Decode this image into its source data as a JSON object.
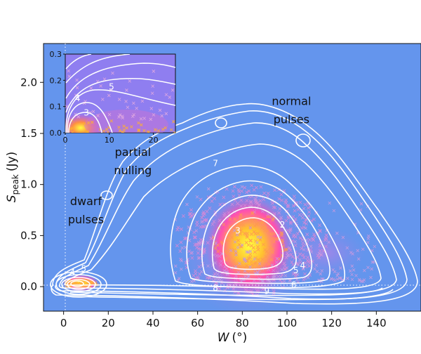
{
  "chart_data": {
    "type": "contour",
    "xlabel": "W (°)",
    "xlabel_symbol": "W",
    "xlabel_unit": "(°)",
    "ylabel": "S_peak (Jy)",
    "ylabel_symbol": "S",
    "ylabel_sub": "peak",
    "ylabel_unit": "(Jy)",
    "xlim": [
      -9,
      160
    ],
    "ylim": [
      -0.24,
      2.38
    ],
    "xticks": [
      0,
      20,
      40,
      60,
      80,
      100,
      120,
      140
    ],
    "xtick_labels": [
      "0",
      "20",
      "40",
      "60",
      "80",
      "100",
      "120",
      "140"
    ],
    "yticks": [
      0.0,
      0.5,
      1.0,
      1.5,
      2.0
    ],
    "ytick_labels": [
      "0.0",
      "0.5",
      "1.0",
      "1.5",
      "2.0"
    ],
    "background_color": "#6495ed",
    "contour_color": "#ffffff",
    "reference_lines": {
      "x": 0,
      "y": 0,
      "style": "dotted"
    },
    "annotations": [
      {
        "text": "normal",
        "x": 102,
        "y": 1.78
      },
      {
        "text": "pulses",
        "x": 102,
        "y": 1.6
      },
      {
        "text": "partial",
        "x": 31,
        "y": 1.28
      },
      {
        "text": "nulling",
        "x": 31,
        "y": 1.1
      },
      {
        "text": "dwarf",
        "x": 10,
        "y": 0.8
      },
      {
        "text": "pulses",
        "x": 10,
        "y": 0.62
      }
    ],
    "contour_labels": [
      {
        "text": "3",
        "x": 78,
        "y": 0.52
      },
      {
        "text": "4",
        "x": 107,
        "y": 0.18
      },
      {
        "text": "5",
        "x": 104,
        "y": 0.13
      },
      {
        "text": "6",
        "x": 103,
        "y": -0.01
      },
      {
        "text": "7",
        "x": 68,
        "y": 1.18
      },
      {
        "text": "8",
        "x": 68,
        "y": -0.04
      },
      {
        "text": "9",
        "x": 91,
        "y": -0.07
      },
      {
        "text": "2",
        "x": 98,
        "y": 0.58
      },
      {
        "text": "4",
        "x": 4,
        "y": 0.11
      },
      {
        "text": "5",
        "x": 9,
        "y": 0.15
      }
    ],
    "regions": [
      {
        "name": "normal pulses",
        "center": [
          84,
          0.42
        ],
        "peak_density": "high"
      },
      {
        "name": "dwarf pulses",
        "center": [
          4,
          0.02
        ],
        "peak_density": "high"
      }
    ],
    "inset": {
      "xlim": [
        0,
        25
      ],
      "ylim": [
        0,
        0.3
      ],
      "xticks": [
        0,
        10,
        20
      ],
      "xtick_labels": [
        "0",
        "10",
        "20"
      ],
      "yticks": [
        0.0,
        0.1,
        0.2,
        0.3
      ],
      "ytick_labels": [
        "0.0",
        "0.1",
        "0.2",
        "0.3"
      ],
      "contour_labels": [
        {
          "text": "3",
          "x": 4.8,
          "y": 0.065
        },
        {
          "text": "4",
          "x": 2.8,
          "y": 0.12
        },
        {
          "text": "5",
          "x": 10.5,
          "y": 0.165
        }
      ]
    }
  }
}
